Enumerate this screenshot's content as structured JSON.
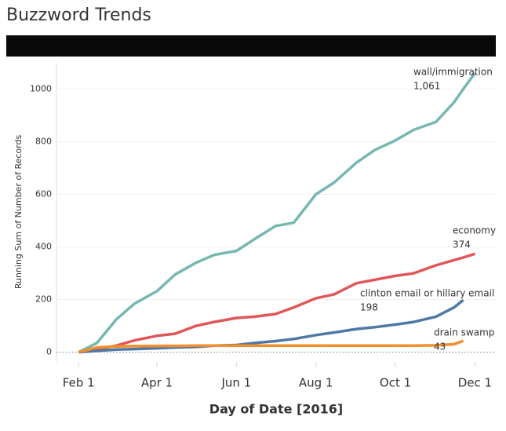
{
  "chart_data": {
    "type": "line",
    "title": "Buzzword Trends",
    "x_label": "Day of Date [2016]",
    "y_label": "Running Sum of Number of Records",
    "x": [
      "2016-02-01",
      "2016-02-15",
      "2016-03-01",
      "2016-03-15",
      "2016-04-01",
      "2016-04-15",
      "2016-05-01",
      "2016-05-15",
      "2016-06-01",
      "2016-06-15",
      "2016-07-01",
      "2016-07-15",
      "2016-08-01",
      "2016-08-15",
      "2016-09-01",
      "2016-09-15",
      "2016-10-01",
      "2016-10-15",
      "2016-11-01",
      "2016-11-15",
      "2016-11-22",
      "2016-12-01"
    ],
    "series": [
      {
        "name": "wall/immigration",
        "color": "#76b7b2",
        "values": [
          0,
          35,
          125,
          185,
          232,
          295,
          340,
          370,
          385,
          430,
          480,
          492,
          600,
          645,
          720,
          768,
          805,
          845,
          875,
          950,
          1000,
          1061
        ],
        "value_labels": [
          null,
          null,
          null,
          null,
          null,
          null,
          null,
          null,
          null,
          null,
          null,
          null,
          null,
          null,
          null,
          null,
          null,
          null,
          null,
          null,
          null,
          "1,061"
        ]
      },
      {
        "name": "economy",
        "color": "#e15759",
        "values": [
          0,
          10,
          25,
          45,
          62,
          70,
          100,
          115,
          130,
          135,
          145,
          170,
          205,
          220,
          262,
          275,
          290,
          300,
          330,
          350,
          360,
          374
        ]
      },
      {
        "name": "clinton email or hillary email",
        "color": "#4e79a7",
        "values": [
          0,
          5,
          10,
          12,
          15,
          18,
          20,
          25,
          27,
          35,
          42,
          50,
          65,
          75,
          88,
          95,
          105,
          115,
          135,
          170,
          198,
          null
        ]
      },
      {
        "name": "drain swamp",
        "color": "#f28e2b",
        "values": [
          0,
          18,
          22,
          23,
          24,
          24,
          25,
          25,
          25,
          25,
          25,
          25,
          25,
          25,
          25,
          25,
          25,
          25,
          26,
          30,
          43,
          null
        ]
      }
    ],
    "xlim": [
      "2016-01-15",
      "2016-12-17"
    ],
    "xticks": [
      {
        "value": "2016-02-01",
        "label": "Feb 1"
      },
      {
        "value": "2016-04-01",
        "label": "Apr 1"
      },
      {
        "value": "2016-06-01",
        "label": "Jun 1"
      },
      {
        "value": "2016-08-01",
        "label": "Aug 1"
      },
      {
        "value": "2016-10-01",
        "label": "Oct 1"
      },
      {
        "value": "2016-12-01",
        "label": "Dec 1"
      }
    ],
    "ylim": [
      -40,
      1100
    ],
    "yticks": [
      0,
      200,
      400,
      600,
      800,
      1000
    ],
    "grid": true
  }
}
